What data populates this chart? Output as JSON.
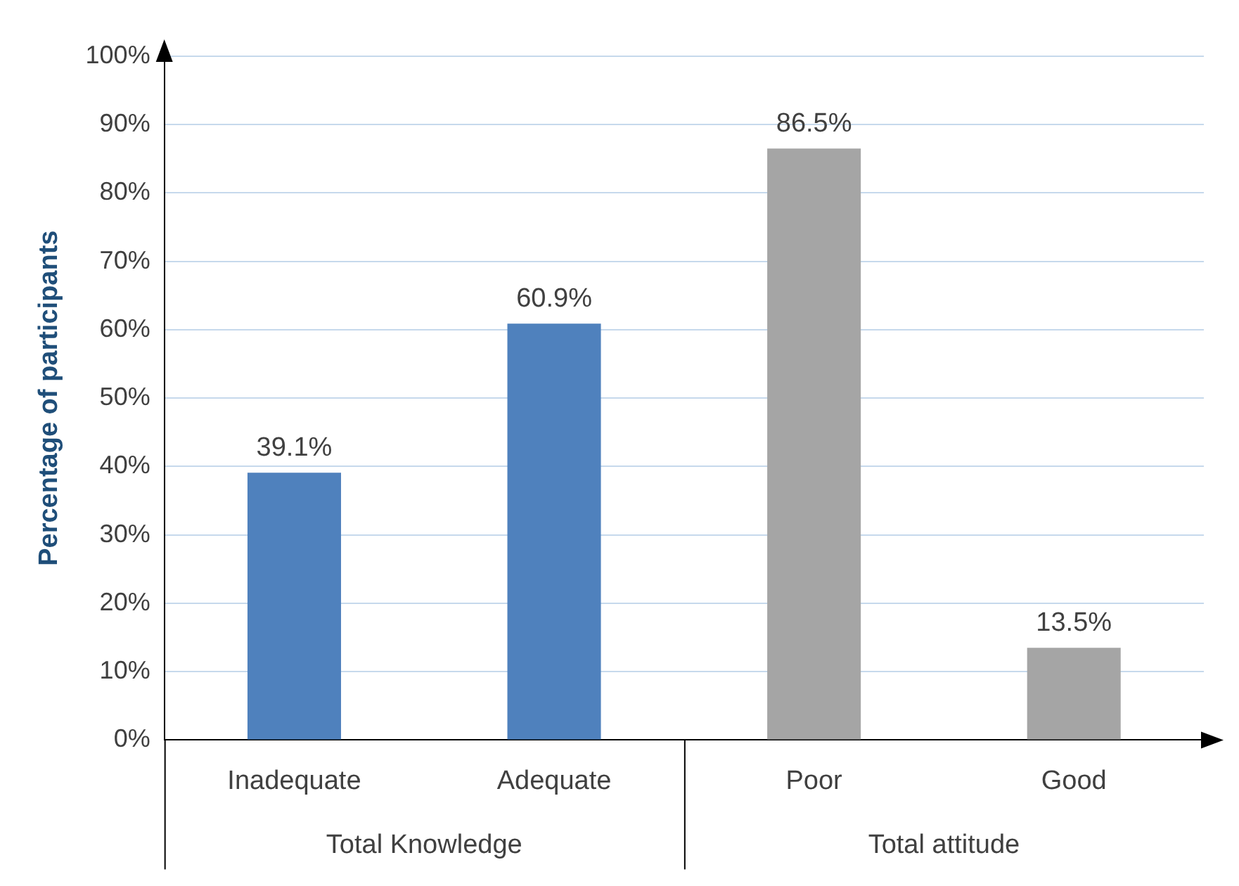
{
  "chart_data": {
    "type": "bar",
    "ylabel": "Percentage of participants",
    "categories": [
      "Inadequate",
      "Adequate",
      "Poor",
      "Good"
    ],
    "values": [
      39.1,
      60.9,
      86.5,
      13.5
    ],
    "colors": [
      "#4f81bd",
      "#4f81bd",
      "#a5a5a5",
      "#a5a5a5"
    ],
    "value_labels": [
      "39.1%",
      "60.9%",
      "86.5%",
      "13.5%"
    ],
    "ylim": [
      0,
      100
    ],
    "yticks": [
      {
        "value": 0,
        "label": "0%"
      },
      {
        "value": 10,
        "label": "10%"
      },
      {
        "value": 20,
        "label": "20%"
      },
      {
        "value": 30,
        "label": "30%"
      },
      {
        "value": 40,
        "label": "40%"
      },
      {
        "value": 50,
        "label": "50%"
      },
      {
        "value": 60,
        "label": "60%"
      },
      {
        "value": 70,
        "label": "70%"
      },
      {
        "value": 80,
        "label": "80%"
      },
      {
        "value": 90,
        "label": "90%"
      },
      {
        "value": 100,
        "label": "100%"
      }
    ],
    "annotations": [
      "Total Knowledge",
      "Total attitude"
    ],
    "grid": "y",
    "legend": false
  }
}
